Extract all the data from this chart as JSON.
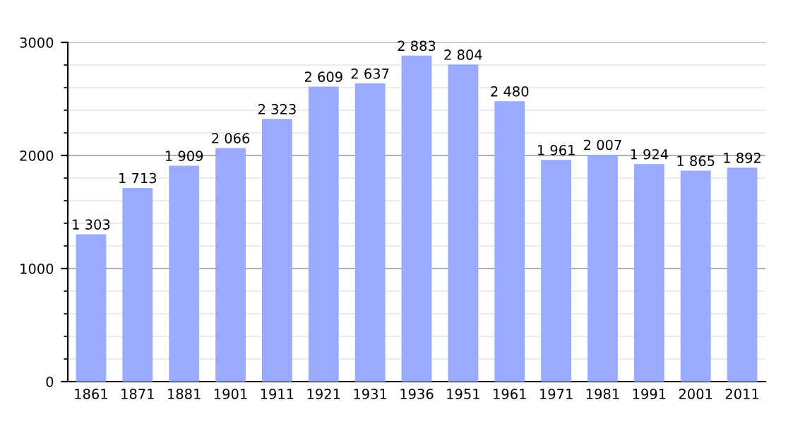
{
  "chart_data": {
    "type": "bar",
    "categories": [
      "1861",
      "1871",
      "1881",
      "1901",
      "1911",
      "1921",
      "1931",
      "1936",
      "1951",
      "1961",
      "1971",
      "1981",
      "1991",
      "2001",
      "2011"
    ],
    "values": [
      1303,
      1713,
      1909,
      2066,
      2323,
      2609,
      2637,
      2883,
      2804,
      2480,
      1961,
      2007,
      1924,
      1865,
      1892
    ],
    "value_labels": [
      "1 303",
      "1 713",
      "1 909",
      "2 066",
      "2 323",
      "2 609",
      "2 637",
      "2 883",
      "2 804",
      "2 480",
      "1 961",
      "2 007",
      "1 924",
      "1 865",
      "1 892"
    ],
    "color": "#99aaff",
    "ylim": [
      0,
      3000
    ],
    "yticks": [
      0,
      1000,
      2000,
      3000
    ],
    "grid": "y"
  }
}
